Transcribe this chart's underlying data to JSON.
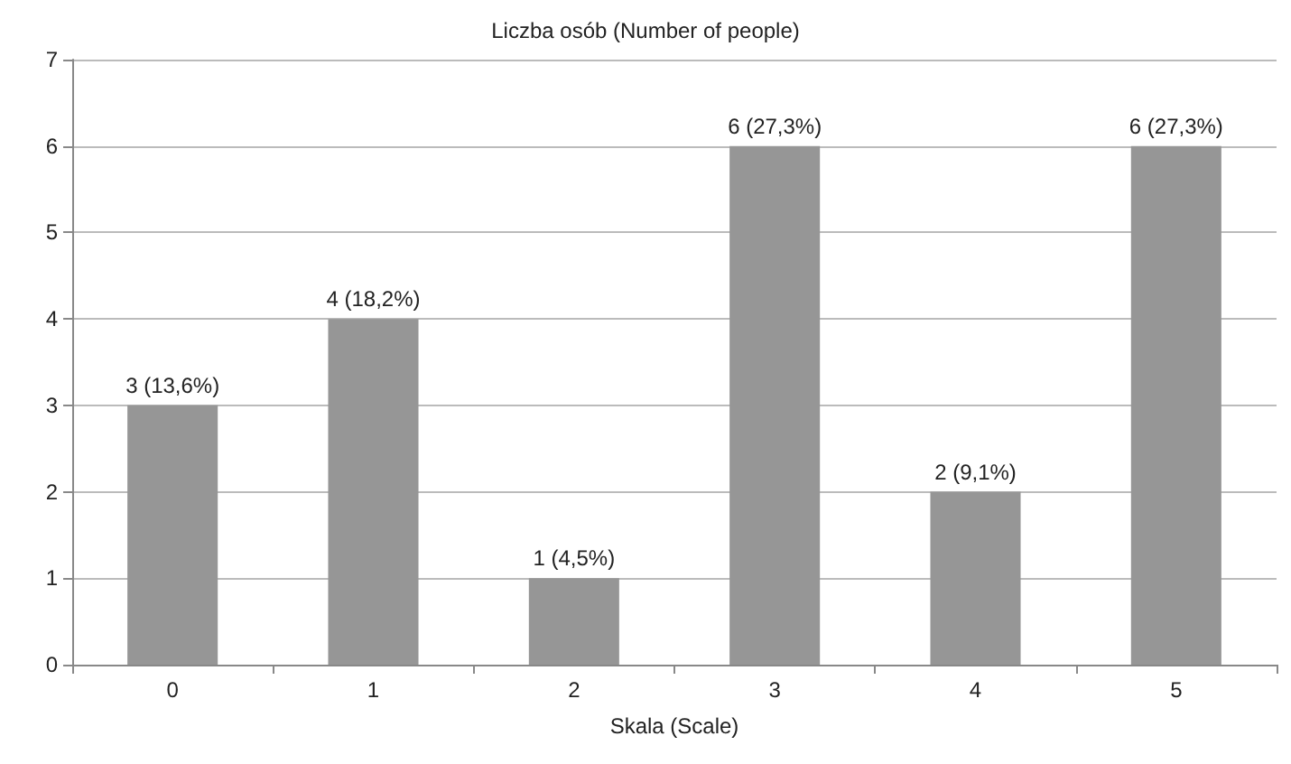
{
  "chart_data": {
    "type": "bar",
    "title": "Liczba osób (Number of people)",
    "xlabel": "Skala (Scale)",
    "categories": [
      "0",
      "1",
      "2",
      "3",
      "4",
      "5"
    ],
    "values": [
      3,
      4,
      1,
      6,
      2,
      6
    ],
    "value_labels": [
      "3 (13,6%)",
      "4 (18,2%)",
      "1 (4,5%)",
      "6 (27,3%)",
      "2 (9,1%)",
      "6 (27,3%)"
    ],
    "color": "#969696",
    "ylim": [
      0,
      7
    ],
    "yticks": [
      0,
      1,
      2,
      3,
      4,
      5,
      6,
      7
    ],
    "grid": "y"
  }
}
